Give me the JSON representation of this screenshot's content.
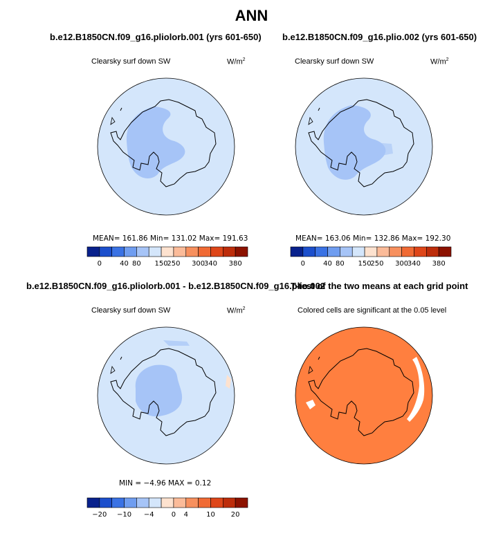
{
  "figure": {
    "title": "ANN",
    "panel1_title": "b.e12.B1850CN.f09_g16.pliolorb.001 (yrs 601-650)",
    "panel2_title": "b.e12.B1850CN.f09_g16.plio.002 (yrs 601-650)",
    "panel3_title": "b.e12.B1850CN.f09_g16.pliolorb.001 - b.e12.B1850CN.f09_g16.plio.002",
    "panel4_title": "T-test of the two means at each grid point"
  },
  "panels": [
    {
      "variable": "Clearsky surf down SW",
      "units_base": "W/m",
      "units_exp": "2",
      "stats": "MEAN= 161.86   Min= 131.02   Max= 191.63"
    },
    {
      "variable": "Clearsky surf down SW",
      "units_base": "W/m",
      "units_exp": "2",
      "stats": "MEAN= 163.06   Min= 132.86   Max= 192.30"
    },
    {
      "variable": "Clearsky surf down SW",
      "units_base": "W/m",
      "units_exp": "2",
      "stats": "MIN =  −4.96 MAX =   0.12"
    },
    {
      "note": "Colored cells are significant at the 0.05 level"
    }
  ],
  "chart_data": [
    {
      "type": "heatmap",
      "projection": "south polar stereographic",
      "title": "b.e12.B1850CN.f09_g16.pliolorb.001 (yrs 601-650)",
      "variable": "Clearsky surf down SW",
      "units": "W/m2",
      "mean": 161.86,
      "min": 131.02,
      "max": 191.63,
      "colorbar_levels": [
        0,
        40,
        80,
        150,
        250,
        300,
        340,
        380
      ],
      "colorbar_labels": [
        "0",
        "40",
        "80",
        "150",
        "250",
        "300",
        "340",
        "380"
      ],
      "colorbar_colors": [
        "#08218c",
        "#1c4fcc",
        "#3a72e4",
        "#6f9df0",
        "#a6c4f7",
        "#d4e6fb",
        "#fde2cf",
        "#fbbb99",
        "#f7905e",
        "#f06a34",
        "#de4619",
        "#bd2d0b",
        "#8c1200"
      ],
      "fill_colors": {
        "ocean": "#d4e6fb",
        "interior": "#a6c4f7",
        "east_plateau": "#d4e6fb"
      }
    },
    {
      "type": "heatmap",
      "projection": "south polar stereographic",
      "title": "b.e12.B1850CN.f09_g16.plio.002 (yrs 601-650)",
      "variable": "Clearsky surf down SW",
      "units": "W/m2",
      "mean": 163.06,
      "min": 132.86,
      "max": 192.3,
      "colorbar_levels": [
        0,
        40,
        80,
        150,
        250,
        300,
        340,
        380
      ],
      "colorbar_labels": [
        "0",
        "40",
        "80",
        "150",
        "250",
        "300",
        "340",
        "380"
      ],
      "fill_colors": {
        "ocean": "#d4e6fb",
        "interior": "#a6c4f7",
        "east_plateau": "#d4e6fb"
      }
    },
    {
      "type": "heatmap",
      "projection": "south polar stereographic",
      "title": "b.e12.B1850CN.f09_g16.pliolorb.001 - b.e12.B1850CN.f09_g16.plio.002",
      "variable": "Clearsky surf down SW",
      "units": "W/m2",
      "min": -4.96,
      "max": 0.12,
      "colorbar_levels": [
        -20,
        -10,
        -4,
        0,
        4,
        10,
        20
      ],
      "colorbar_labels": [
        "−20",
        "−10",
        "−4",
        "0",
        "4",
        "10",
        "20"
      ],
      "colorbar_colors": [
        "#08218c",
        "#1c4fcc",
        "#3a72e4",
        "#6f9df0",
        "#a6c4f7",
        "#d4e6fb",
        "#fde2cf",
        "#fbbb99",
        "#f7905e",
        "#f06a34",
        "#de4619",
        "#bd2d0b",
        "#8c1200"
      ],
      "fill_colors": {
        "ocean": "#d4e6fb",
        "interior": "#a6c4f7",
        "positive_patch": "#fde2cf"
      }
    },
    {
      "type": "heatmap",
      "projection": "south polar stereographic",
      "title": "T-test of the two means at each grid point",
      "note": "Colored cells are significant at the 0.05 level",
      "fill_colors": {
        "significant": "#ff7f3f",
        "not_significant": "#ffffff"
      }
    }
  ]
}
